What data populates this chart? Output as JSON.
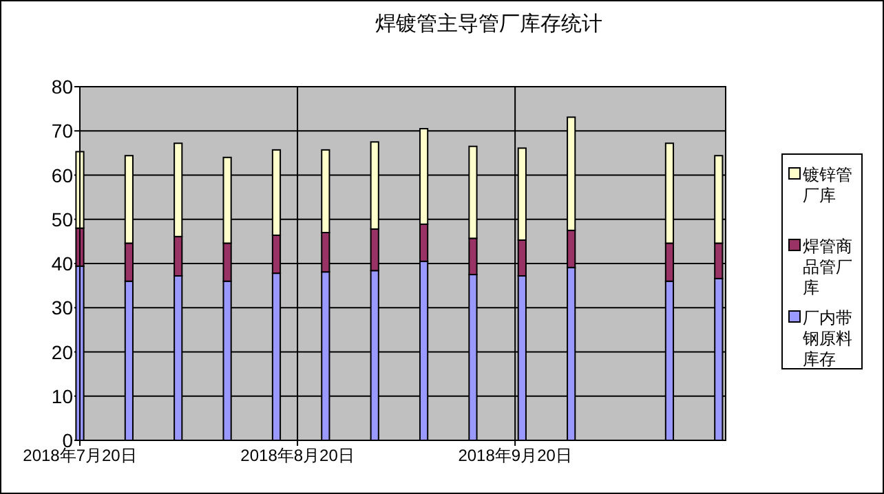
{
  "chart_data": {
    "type": "bar",
    "title": "焊镀管主导管厂库存统计",
    "stacked": true,
    "x": [
      "2018-07-20",
      "2018-07-27",
      "2018-08-03",
      "2018-08-10",
      "2018-08-17",
      "2018-08-24",
      "2018-08-31",
      "2018-09-07",
      "2018-09-14",
      "2018-09-21",
      "2018-09-28",
      "2018-10-12",
      "2018-10-19"
    ],
    "series": [
      {
        "name": "厂内带钢原料库存",
        "color": "#9999ff",
        "values": [
          39.4,
          36.0,
          37.2,
          36.0,
          37.8,
          38.1,
          38.4,
          40.5,
          37.5,
          37.2,
          39.1,
          36.0,
          36.6
        ]
      },
      {
        "name": "焊管商品管厂库",
        "color": "#993366",
        "values": [
          8.6,
          8.6,
          8.9,
          8.6,
          8.6,
          8.9,
          9.4,
          8.4,
          8.2,
          8.1,
          8.4,
          8.6,
          8.0
        ]
      },
      {
        "name": "镀锌管厂库",
        "color": "#ffffcc",
        "values": [
          17.3,
          19.8,
          21.1,
          19.4,
          19.3,
          18.7,
          19.7,
          21.6,
          20.8,
          20.8,
          25.6,
          22.6,
          19.8
        ]
      }
    ],
    "xlim": [
      "2018-07-20",
      "2018-10-20"
    ],
    "xticks": [
      {
        "value": "2018-07-20",
        "label": "2018年7月20日"
      },
      {
        "value": "2018-08-20",
        "label": "2018年8月20日"
      },
      {
        "value": "2018-09-20",
        "label": "2018年9月20日"
      }
    ],
    "ylim": [
      0,
      80
    ],
    "yticks": [
      0,
      10,
      20,
      30,
      40,
      50,
      60,
      70,
      80
    ],
    "grid": true,
    "legend": "right"
  }
}
